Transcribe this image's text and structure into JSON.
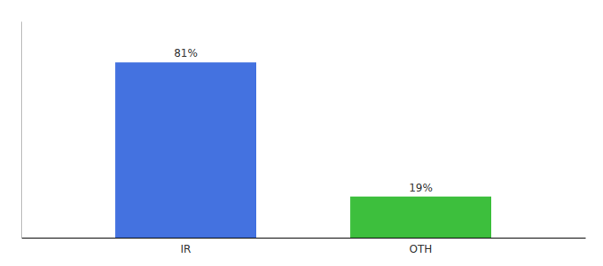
{
  "chart_data": {
    "type": "bar",
    "categories": [
      "IR",
      "OTH"
    ],
    "values": [
      81,
      19
    ],
    "value_labels": [
      "81%",
      "19%"
    ],
    "colors": [
      "#4472e0",
      "#3dbf3d"
    ],
    "ylim": [
      0,
      100
    ],
    "data_labels": true,
    "tick_labels": "x"
  }
}
